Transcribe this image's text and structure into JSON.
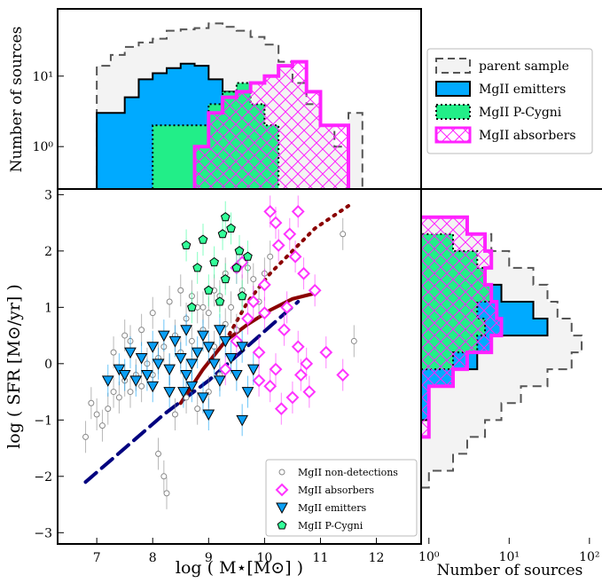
{
  "chart_data": {
    "type": "scatter",
    "main": {
      "xlabel": "log ( M⋆[M⊙] )",
      "ylabel": "log ( SFR [M⊙/yr] )",
      "xlim": [
        6.3,
        12.8
      ],
      "ylim": [
        -3.2,
        3.1
      ],
      "xticks": [
        "7",
        "8",
        "9",
        "10",
        "11",
        "12"
      ],
      "yticks": [
        "−3",
        "−2",
        "−1",
        "0",
        "1",
        "2",
        "3"
      ],
      "legend": {
        "placement": "bottom-right",
        "entries": [
          "MgII non-detections",
          "MgII absorbers",
          "MgII emitters",
          "MgII P-Cygni"
        ]
      },
      "series": [
        {
          "name": "MgII non-detections",
          "marker": "open-circle",
          "color": "#888888",
          "points": [
            [
              6.8,
              -1.3
            ],
            [
              6.9,
              -0.7
            ],
            [
              7.0,
              -0.9
            ],
            [
              7.1,
              -1.1
            ],
            [
              7.2,
              -0.8
            ],
            [
              7.3,
              -0.5
            ],
            [
              7.4,
              -0.6
            ],
            [
              7.5,
              -0.3
            ],
            [
              7.6,
              -0.5
            ],
            [
              7.7,
              -0.2
            ],
            [
              7.8,
              -0.4
            ],
            [
              7.9,
              0.0
            ],
            [
              8.0,
              -0.2
            ],
            [
              8.1,
              0.1
            ],
            [
              8.2,
              0.3
            ],
            [
              8.3,
              -0.1
            ],
            [
              8.4,
              0.5
            ],
            [
              8.5,
              0.2
            ],
            [
              8.6,
              0.8
            ],
            [
              8.7,
              0.4
            ],
            [
              8.8,
              1.0
            ],
            [
              8.9,
              0.6
            ],
            [
              9.0,
              0.9
            ],
            [
              9.1,
              0.3
            ],
            [
              9.2,
              1.2
            ],
            [
              9.3,
              0.7
            ],
            [
              9.4,
              1.0
            ],
            [
              9.5,
              0.6
            ],
            [
              9.6,
              1.3
            ],
            [
              9.7,
              1.7
            ],
            [
              9.8,
              1.5
            ],
            [
              9.9,
              1.1
            ],
            [
              10.0,
              1.6
            ],
            [
              10.1,
              1.9
            ],
            [
              8.1,
              -1.6
            ],
            [
              8.2,
              -2.0
            ],
            [
              8.25,
              -2.3
            ],
            [
              8.4,
              -0.9
            ],
            [
              8.6,
              -0.6
            ],
            [
              8.8,
              -0.8
            ],
            [
              9.0,
              -0.5
            ],
            [
              9.2,
              -0.2
            ],
            [
              11.4,
              2.3
            ],
            [
              11.6,
              0.4
            ],
            [
              7.6,
              0.4
            ],
            [
              7.8,
              0.6
            ],
            [
              8.0,
              0.9
            ],
            [
              8.3,
              1.1
            ],
            [
              8.5,
              1.3
            ],
            [
              8.7,
              1.2
            ],
            [
              8.9,
              1.0
            ],
            [
              9.1,
              1.3
            ],
            [
              9.3,
              1.6
            ],
            [
              7.3,
              0.2
            ],
            [
              7.5,
              0.5
            ]
          ]
        },
        {
          "name": "MgII absorbers",
          "marker": "open-diamond",
          "color": "#ff33ff",
          "points": [
            [
              9.3,
              -0.1
            ],
            [
              9.5,
              0.4
            ],
            [
              9.6,
              1.8
            ],
            [
              9.7,
              0.8
            ],
            [
              9.8,
              1.1
            ],
            [
              9.9,
              0.2
            ],
            [
              10.0,
              1.4
            ],
            [
              10.1,
              -0.4
            ],
            [
              10.2,
              2.5
            ],
            [
              10.25,
              2.1
            ],
            [
              10.3,
              -0.8
            ],
            [
              10.35,
              0.6
            ],
            [
              10.4,
              1.0
            ],
            [
              10.45,
              2.3
            ],
            [
              10.5,
              -0.6
            ],
            [
              10.55,
              1.9
            ],
            [
              10.6,
              0.3
            ],
            [
              10.65,
              -0.2
            ],
            [
              10.7,
              1.6
            ],
            [
              10.75,
              0.0
            ],
            [
              10.8,
              -0.5
            ],
            [
              10.9,
              1.3
            ],
            [
              11.1,
              0.2
            ],
            [
              11.4,
              -0.2
            ],
            [
              9.5,
              1.7
            ],
            [
              10.1,
              2.7
            ],
            [
              10.6,
              2.7
            ],
            [
              10.2,
              -0.1
            ],
            [
              10.0,
              0.9
            ],
            [
              9.9,
              -0.3
            ]
          ]
        },
        {
          "name": "MgII emitters",
          "marker": "down-triangle",
          "color": "#0a9ff5",
          "points": [
            [
              7.2,
              -0.3
            ],
            [
              7.4,
              -0.1
            ],
            [
              7.5,
              -0.2
            ],
            [
              7.6,
              0.2
            ],
            [
              7.7,
              -0.3
            ],
            [
              7.8,
              0.1
            ],
            [
              7.9,
              -0.2
            ],
            [
              8.0,
              0.3
            ],
            [
              8.1,
              0.0
            ],
            [
              8.2,
              0.5
            ],
            [
              8.3,
              -0.1
            ],
            [
              8.4,
              0.4
            ],
            [
              8.5,
              0.1
            ],
            [
              8.55,
              -0.5
            ],
            [
              8.6,
              0.6
            ],
            [
              8.7,
              -0.4
            ],
            [
              8.8,
              0.2
            ],
            [
              8.9,
              -0.6
            ],
            [
              9.0,
              0.3
            ],
            [
              9.1,
              0.0
            ],
            [
              9.2,
              -0.3
            ],
            [
              9.3,
              0.4
            ],
            [
              9.4,
              0.1
            ],
            [
              9.5,
              -0.2
            ],
            [
              9.6,
              0.3
            ],
            [
              9.7,
              -0.5
            ],
            [
              9.8,
              -0.1
            ],
            [
              8.3,
              -0.5
            ],
            [
              8.6,
              -0.2
            ],
            [
              8.9,
              0.5
            ],
            [
              9.2,
              0.6
            ],
            [
              8.0,
              -0.4
            ],
            [
              8.7,
              0.0
            ],
            [
              9.0,
              -0.9
            ],
            [
              9.6,
              -1.0
            ]
          ]
        },
        {
          "name": "MgII P-Cygni",
          "marker": "pentagon",
          "color": "#33ff99",
          "points": [
            [
              8.6,
              2.1
            ],
            [
              8.8,
              1.7
            ],
            [
              8.9,
              2.2
            ],
            [
              9.0,
              1.3
            ],
            [
              9.1,
              1.8
            ],
            [
              9.2,
              1.1
            ],
            [
              9.25,
              2.3
            ],
            [
              9.3,
              1.5
            ],
            [
              9.4,
              2.4
            ],
            [
              9.5,
              1.7
            ],
            [
              9.55,
              2.0
            ],
            [
              9.6,
              1.2
            ],
            [
              9.7,
              1.9
            ],
            [
              8.7,
              1.0
            ],
            [
              9.3,
              2.6
            ]
          ]
        }
      ],
      "trend_lines": [
        {
          "style": "dashed",
          "color": "#00007f",
          "points": [
            [
              6.8,
              -2.1
            ],
            [
              7.5,
              -1.5
            ],
            [
              8.2,
              -0.9
            ],
            [
              9.0,
              -0.3
            ],
            [
              9.8,
              0.4
            ],
            [
              10.6,
              1.1
            ]
          ]
        },
        {
          "style": "solid",
          "color": "#8b0000",
          "points": [
            [
              8.5,
              -0.7
            ],
            [
              8.9,
              -0.1
            ],
            [
              9.3,
              0.4
            ],
            [
              9.7,
              0.7
            ],
            [
              10.1,
              0.95
            ],
            [
              10.5,
              1.15
            ],
            [
              10.9,
              1.25
            ]
          ]
        },
        {
          "style": "dotted",
          "color": "#8b0000",
          "points": [
            [
              9.3,
              0.4
            ],
            [
              9.7,
              1.1
            ],
            [
              10.1,
              1.6
            ],
            [
              10.5,
              2.0
            ],
            [
              10.9,
              2.4
            ],
            [
              11.5,
              2.8
            ]
          ]
        }
      ]
    },
    "top_histogram": {
      "ylabel": "Number of sources",
      "y_scale": "log",
      "yticks": [
        "10⁰",
        "10¹"
      ],
      "bin_edges": [
        7.0,
        7.25,
        7.5,
        7.75,
        8.0,
        8.25,
        8.5,
        8.75,
        9.0,
        9.25,
        9.5,
        9.75,
        10.0,
        10.25,
        10.5,
        10.75,
        11.0,
        11.25,
        11.5,
        11.75
      ],
      "series": [
        {
          "name": "parent sample",
          "style": "dashed",
          "color": "#555555",
          "fill": "#f3f3f3",
          "counts": [
            14,
            20,
            26,
            30,
            34,
            44,
            46,
            48,
            56,
            50,
            44,
            36,
            28,
            16,
            8,
            4,
            2,
            1,
            3
          ]
        },
        {
          "name": "MgII emitters",
          "style": "solid",
          "color": "#000000",
          "fill": "#00aaff",
          "counts": [
            3,
            3,
            5,
            9,
            11,
            13,
            15,
            14,
            9,
            6,
            0,
            0,
            0,
            0,
            0,
            0,
            0,
            0,
            0
          ]
        },
        {
          "name": "MgII P-Cygni",
          "style": "dotted",
          "color": "#000000",
          "fill": "#22ee88",
          "counts": [
            0,
            0,
            0,
            0,
            2,
            2,
            2,
            2,
            4,
            6,
            8,
            4,
            2,
            0,
            0,
            0,
            0,
            0,
            0
          ]
        },
        {
          "name": "MgII absorbers",
          "style": "solid",
          "color": "#ff22ff",
          "fill": "hatch",
          "counts": [
            0,
            0,
            0,
            0,
            0,
            0,
            0,
            1,
            3,
            5,
            6,
            8,
            10,
            14,
            16,
            6,
            2,
            2,
            0
          ]
        }
      ]
    },
    "right_histogram": {
      "xlabel": "Number of sources",
      "x_scale": "log",
      "xticks": [
        "10⁰",
        "10¹",
        "10²"
      ],
      "bin_edges": [
        -2.2,
        -1.9,
        -1.6,
        -1.3,
        -1.0,
        -0.7,
        -0.4,
        -0.1,
        0.2,
        0.5,
        0.8,
        1.1,
        1.4,
        1.7,
        2.0,
        2.3,
        2.6
      ],
      "series": [
        {
          "name": "parent sample",
          "style": "dashed",
          "color": "#555555",
          "fill": "#f3f3f3",
          "counts": [
            1,
            2,
            3,
            5,
            8,
            14,
            30,
            60,
            80,
            60,
            40,
            30,
            20,
            10,
            6,
            3
          ]
        },
        {
          "name": "MgII emitters",
          "style": "solid",
          "color": "#000000",
          "fill": "#00aaff",
          "counts": [
            0,
            0,
            0,
            0,
            1,
            1,
            2,
            4,
            6,
            30,
            20,
            8,
            0,
            0,
            0,
            0
          ]
        },
        {
          "name": "MgII P-Cygni",
          "style": "dotted",
          "color": "#000000",
          "fill": "#22ee88",
          "counts": [
            0,
            0,
            0,
            0,
            0,
            0,
            0,
            2,
            4,
            5,
            4,
            6,
            5,
            4,
            2,
            0
          ]
        },
        {
          "name": "MgII absorbers",
          "style": "solid",
          "color": "#ff22ff",
          "fill": "hatch",
          "counts": [
            0,
            0,
            0,
            1,
            1,
            1,
            2,
            3,
            6,
            8,
            7,
            6,
            5,
            6,
            5,
            3
          ]
        }
      ]
    },
    "legend": {
      "placement": "top-right",
      "entries": [
        "parent sample",
        "MgII emitters",
        "MgII P-Cygni",
        "MgII absorbers"
      ]
    }
  }
}
